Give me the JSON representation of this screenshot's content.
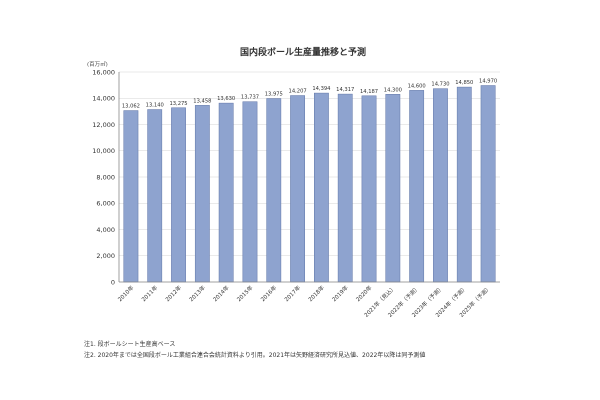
{
  "chart_data": {
    "type": "bar",
    "title": "国内段ボール生産量推移と予測",
    "unit": "(百万㎡)",
    "categories": [
      "2010年",
      "2011年",
      "2012年",
      "2013年",
      "2014年",
      "2015年",
      "2016年",
      "2017年",
      "2018年",
      "2019年",
      "2020年",
      "2021年（見込）",
      "2022年（予測）",
      "2023年（予測）",
      "2024年（予測）",
      "2025年（予測）"
    ],
    "values": [
      13062,
      13140,
      13275,
      13458,
      13630,
      13737,
      13975,
      14207,
      14394,
      14317,
      14187,
      14300,
      14600,
      14730,
      14850,
      14970
    ],
    "value_labels": [
      "13,062",
      "13,140",
      "13,275",
      "13,458",
      "13,630",
      "13,737",
      "13,975",
      "14,207",
      "14,394",
      "14,317",
      "14,187",
      "14,300",
      "14,600",
      "14,730",
      "14,850",
      "14,970"
    ],
    "yticks": [
      "0",
      "2,000",
      "4,000",
      "6,000",
      "8,000",
      "10,000",
      "12,000",
      "14,000",
      "16,000"
    ],
    "ylim": [
      0,
      16000
    ],
    "grid": true,
    "bar_color": "#8ea3cf"
  },
  "notes": {
    "note1": "注1. 段ボールシート生産高ベース",
    "note2": "注2. 2020年までは全国段ボール工業組合連合会統計資料より引用。2021年は矢野経済研究所見込値、2022年以降は同予測値"
  }
}
